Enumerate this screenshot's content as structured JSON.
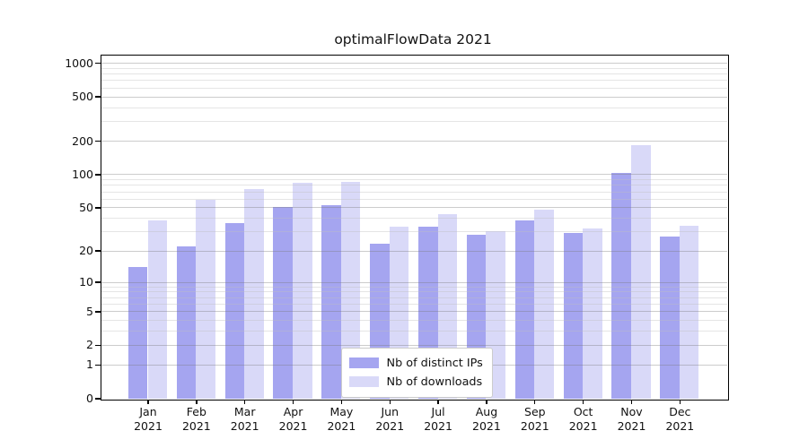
{
  "chart_data": {
    "type": "bar",
    "title": "optimalFlowData 2021",
    "categories": [
      "Jan 2021",
      "Feb 2021",
      "Mar 2021",
      "Apr 2021",
      "May 2021",
      "Jun 2021",
      "Jul 2021",
      "Aug 2021",
      "Sep 2021",
      "Oct 2021",
      "Nov 2021",
      "Dec 2021"
    ],
    "category_month": [
      "Jan",
      "Feb",
      "Mar",
      "Apr",
      "May",
      "Jun",
      "Jul",
      "Aug",
      "Sep",
      "Oct",
      "Nov",
      "Dec"
    ],
    "category_year": "2021",
    "series": [
      {
        "name": "Nb of distinct IPs",
        "color": "#a5a5f0",
        "values": [
          14,
          22,
          36,
          50,
          52,
          23,
          33,
          28,
          38,
          29,
          102,
          27
        ]
      },
      {
        "name": "Nb of downloads",
        "color": "#d9d9f8",
        "values": [
          38,
          59,
          74,
          84,
          86,
          33,
          43,
          30,
          48,
          32,
          183,
          34
        ]
      }
    ],
    "xlabel": "",
    "ylabel": "",
    "yscale": "log1p",
    "y_ticks": [
      0,
      1,
      2,
      5,
      10,
      20,
      50,
      100,
      200,
      500,
      1000
    ],
    "y_minor_ticks": [
      3,
      4,
      6,
      7,
      8,
      9,
      30,
      40,
      60,
      70,
      80,
      90,
      300,
      400,
      600,
      700,
      800,
      900
    ],
    "ylim": [
      0,
      1175
    ],
    "grid": true,
    "legend_position": "lower-center-inside"
  }
}
